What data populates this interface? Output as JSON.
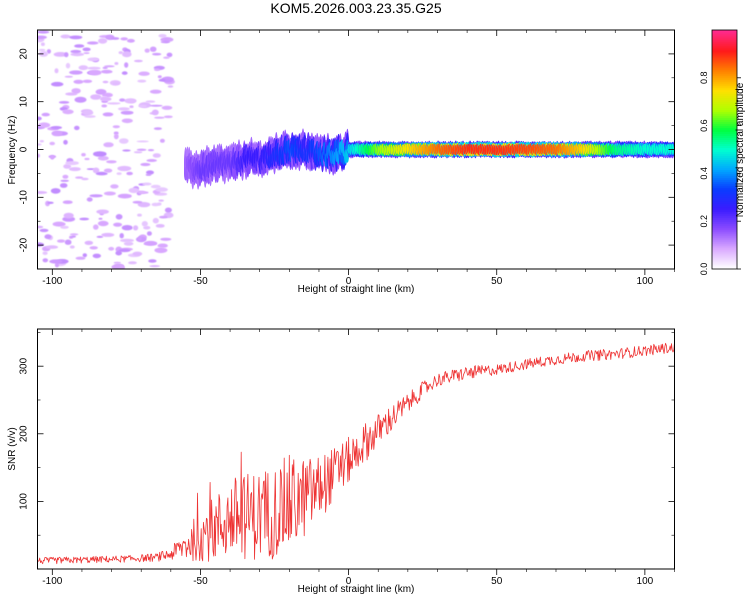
{
  "chart_data": [
    {
      "type": "heatmap",
      "title": "KOM5.2026.003.23.35.G25",
      "xlabel": "Height of straight line (km)",
      "ylabel": "Frequency (Hz)",
      "xlim": [
        -105,
        110
      ],
      "ylim": [
        -25,
        25
      ],
      "x_ticks": [
        -100,
        -50,
        0,
        50,
        100
      ],
      "y_ticks": [
        -20,
        -10,
        0,
        10,
        20
      ],
      "colorbar": {
        "label": "Normalized spectral amplitude",
        "range": [
          0,
          1
        ],
        "ticks": [
          0.0,
          0.2,
          0.4,
          0.6,
          0.8
        ],
        "tick_labels": [
          "0.0",
          "0.2",
          "0.4",
          "0.6",
          "0.8"
        ],
        "colors": [
          "#ffffff",
          "#d9a8ff",
          "#8a4bff",
          "#3a1cff",
          "#0a3cff",
          "#00a8ff",
          "#00ffd0",
          "#00ff40",
          "#b0ff00",
          "#ffe000",
          "#ff8000",
          "#ff1a1a",
          "#ff2a8c"
        ]
      },
      "ridge": {
        "x": [
          -55,
          -50,
          -45,
          -40,
          -35,
          -30,
          -25,
          -20,
          -15,
          -10,
          -5,
          0,
          5,
          10,
          20,
          30,
          40,
          50,
          60,
          70,
          80,
          90,
          100,
          108
        ],
        "frequency": [
          -4,
          -4,
          -3,
          -3,
          -2,
          -2,
          -1,
          0,
          0,
          -1,
          -1,
          0,
          0,
          0,
          0,
          0,
          0,
          0,
          0,
          0,
          0,
          0,
          0,
          0
        ],
        "amplitude": [
          0.15,
          0.2,
          0.2,
          0.2,
          0.25,
          0.25,
          0.3,
          0.35,
          0.3,
          0.35,
          0.4,
          0.45,
          0.55,
          0.65,
          0.75,
          0.85,
          0.9,
          0.9,
          0.88,
          0.85,
          0.75,
          0.55,
          0.5,
          0.5
        ]
      },
      "noise_region": {
        "x_from": -105,
        "x_to": -60,
        "amplitude": 0.05
      }
    },
    {
      "type": "line",
      "xlabel": "Height of straight line (km)",
      "ylabel": "SNR (v/v)",
      "xlim": [
        -105,
        110
      ],
      "ylim": [
        0,
        355
      ],
      "x_ticks": [
        -100,
        -50,
        0,
        50,
        100
      ],
      "y_ticks": [
        100,
        200,
        300
      ],
      "series": [
        {
          "name": "SNR",
          "color": "#ee3333",
          "x": [
            -105,
            -95,
            -85,
            -75,
            -65,
            -60,
            -55,
            -50,
            -45,
            -40,
            -35,
            -30,
            -25,
            -20,
            -15,
            -10,
            -5,
            0,
            5,
            10,
            15,
            20,
            25,
            30,
            35,
            40,
            50,
            60,
            70,
            80,
            90,
            100,
            110
          ],
          "values": [
            12,
            13,
            14,
            15,
            17,
            22,
            35,
            50,
            60,
            75,
            78,
            80,
            85,
            95,
            105,
            120,
            140,
            160,
            185,
            205,
            225,
            245,
            265,
            280,
            285,
            290,
            295,
            303,
            310,
            315,
            318,
            323,
            328
          ],
          "variability": [
            5,
            5,
            5,
            5,
            6,
            9,
            24,
            38,
            50,
            60,
            65,
            68,
            70,
            75,
            60,
            50,
            40,
            35,
            30,
            25,
            20,
            15,
            12,
            10,
            10,
            10,
            8,
            8,
            8,
            8,
            8,
            8,
            8
          ]
        }
      ]
    }
  ]
}
